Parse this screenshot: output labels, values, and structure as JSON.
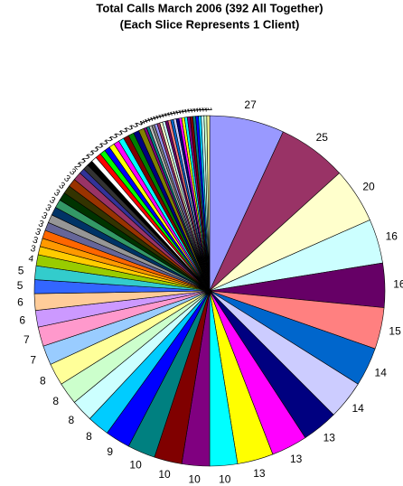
{
  "chart_data": {
    "type": "pie",
    "title": "Total Calls  March 2006 (392 All Together)",
    "subtitle": "(Each Slice Represents 1 Client)",
    "values": [
      27,
      25,
      20,
      16,
      16,
      15,
      14,
      14,
      13,
      13,
      13,
      10,
      10,
      10,
      10,
      9,
      8,
      8,
      8,
      8,
      7,
      7,
      6,
      6,
      5,
      5,
      4,
      3,
      3,
      3,
      3,
      3,
      3,
      3,
      3,
      3,
      3,
      3,
      2,
      2,
      2,
      2,
      2,
      2,
      2,
      2,
      2,
      2,
      2,
      2,
      2,
      2,
      1,
      1,
      1,
      1,
      1,
      1,
      1,
      1,
      1,
      1,
      1,
      1,
      1,
      1,
      1,
      1,
      1,
      1,
      1,
      1,
      1,
      1,
      1,
      1
    ],
    "colors": [
      "#9999ff",
      "#993366",
      "#ffffcc",
      "#ccffff",
      "#660066",
      "#ff8080",
      "#0066cc",
      "#ccccff",
      "#000080",
      "#ff00ff",
      "#ffff00",
      "#00ffff",
      "#800080",
      "#800000",
      "#008080",
      "#0000ff",
      "#00ccff",
      "#ccffff",
      "#ccffcc",
      "#ffff99",
      "#99ccff",
      "#ff99cc",
      "#cc99ff",
      "#ffcc99",
      "#3366ff",
      "#33cccc",
      "#99cc00",
      "#ffcc00",
      "#ff9900",
      "#ff6600",
      "#666699",
      "#969696",
      "#003366",
      "#339966",
      "#003300",
      "#333300",
      "#993300",
      "#993366",
      "#333399",
      "#333333",
      "#000000",
      "#ffffff",
      "#ff0000",
      "#00ff00",
      "#0000ff",
      "#ffff00",
      "#ff00ff",
      "#00ffff",
      "#800000",
      "#008000",
      "#000080",
      "#808000",
      "#800080",
      "#008080",
      "#c0c0c0",
      "#808080",
      "#9999ff",
      "#993366",
      "#ffffcc",
      "#ccffff",
      "#660066",
      "#ff8080",
      "#0066cc",
      "#ccccff",
      "#000080",
      "#ff00ff",
      "#ffff00",
      "#00ffff",
      "#800080",
      "#800000",
      "#008080",
      "#0000ff",
      "#00ccff",
      "#ccffff",
      "#ccffcc",
      "#ffff99"
    ]
  }
}
